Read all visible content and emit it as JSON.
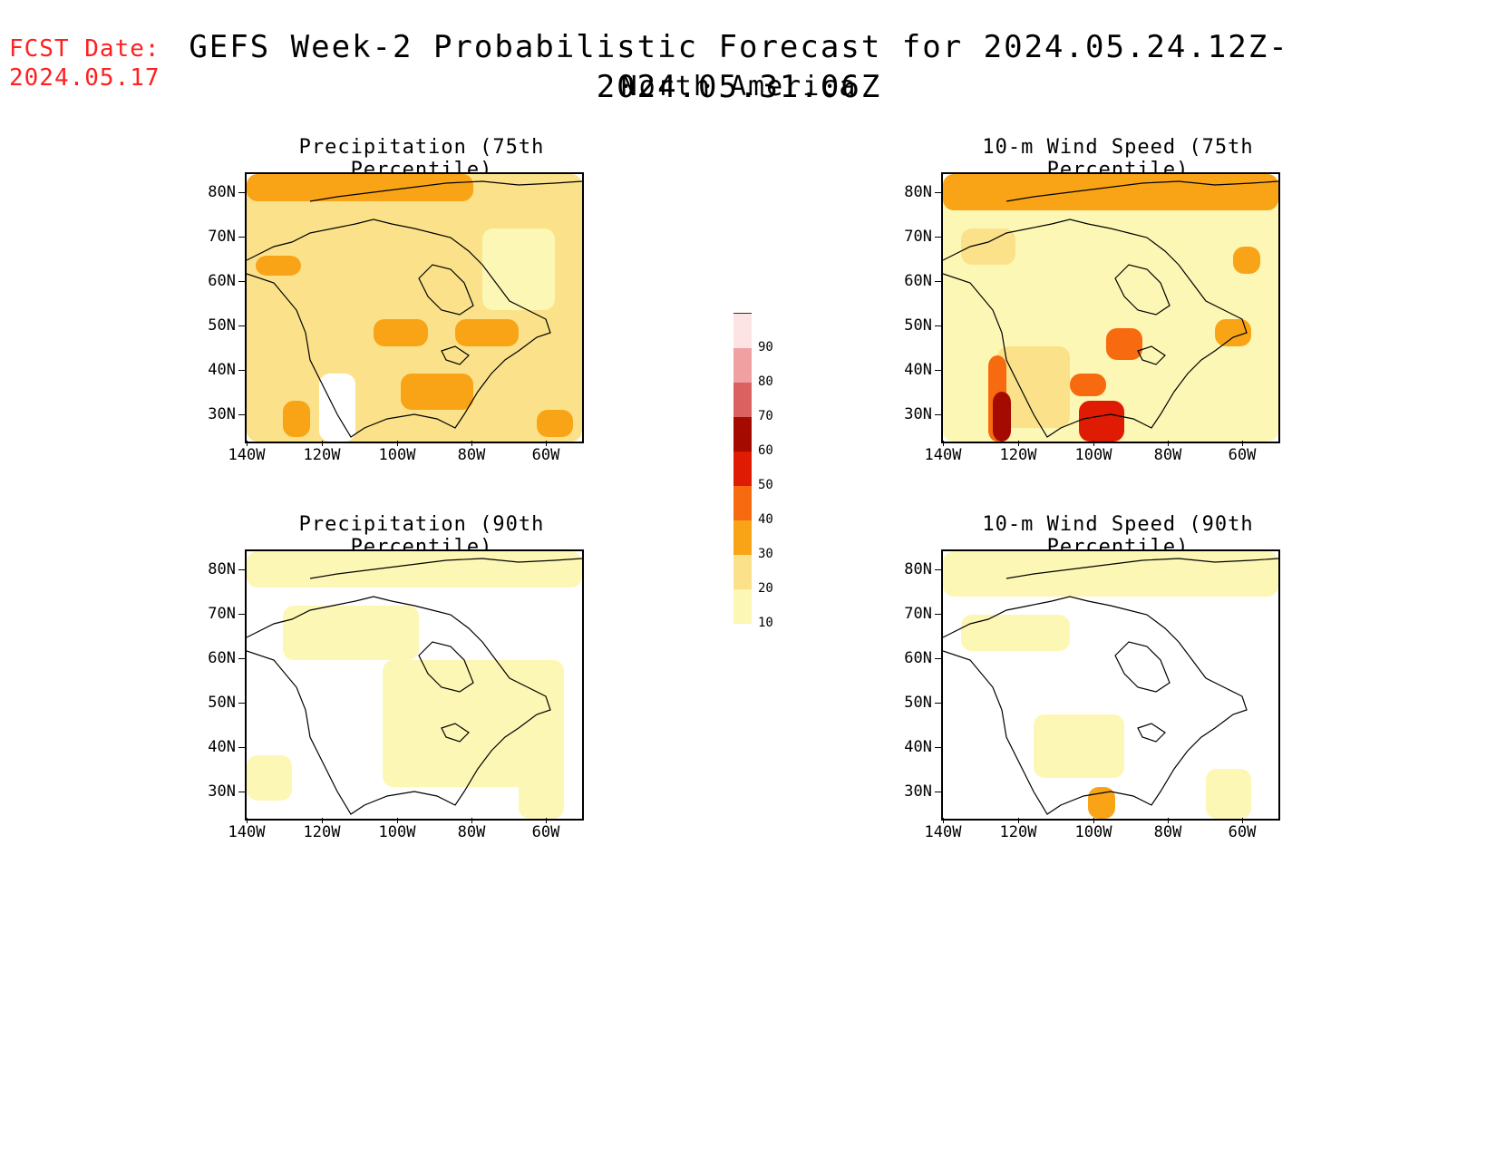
{
  "header": {
    "fcst_label": "FCST Date:",
    "fcst_date": "2024.05.17",
    "title": "GEFS Week-2 Probabilistic Forecast for 2024.05.24.12Z-2024.05.31.06Z",
    "subtitle": "North America"
  },
  "axes": {
    "lat_labels": [
      "80N",
      "70N",
      "60N",
      "50N",
      "40N",
      "30N"
    ],
    "lon_labels": [
      "140W",
      "120W",
      "100W",
      "80W",
      "60W"
    ]
  },
  "panels": [
    {
      "title": "Precipitation (75th Percentile)",
      "id": "precip-75"
    },
    {
      "title": "10-m Wind Speed (75th Percentile)",
      "id": "wind-75"
    },
    {
      "title": "Precipitation (90th Percentile)",
      "id": "precip-90"
    },
    {
      "title": "10-m Wind Speed (90th Percentile)",
      "id": "wind-90"
    }
  ],
  "colorbar": {
    "levels": [
      "10",
      "20",
      "30",
      "40",
      "50",
      "60",
      "70",
      "80",
      "90"
    ],
    "colors": [
      "#fdf7b5",
      "#fbe28a",
      "#f9a417",
      "#f86a0f",
      "#e01b03",
      "#a40a00",
      "#db6161",
      "#f0a0a0",
      "#fde4e4"
    ]
  }
}
